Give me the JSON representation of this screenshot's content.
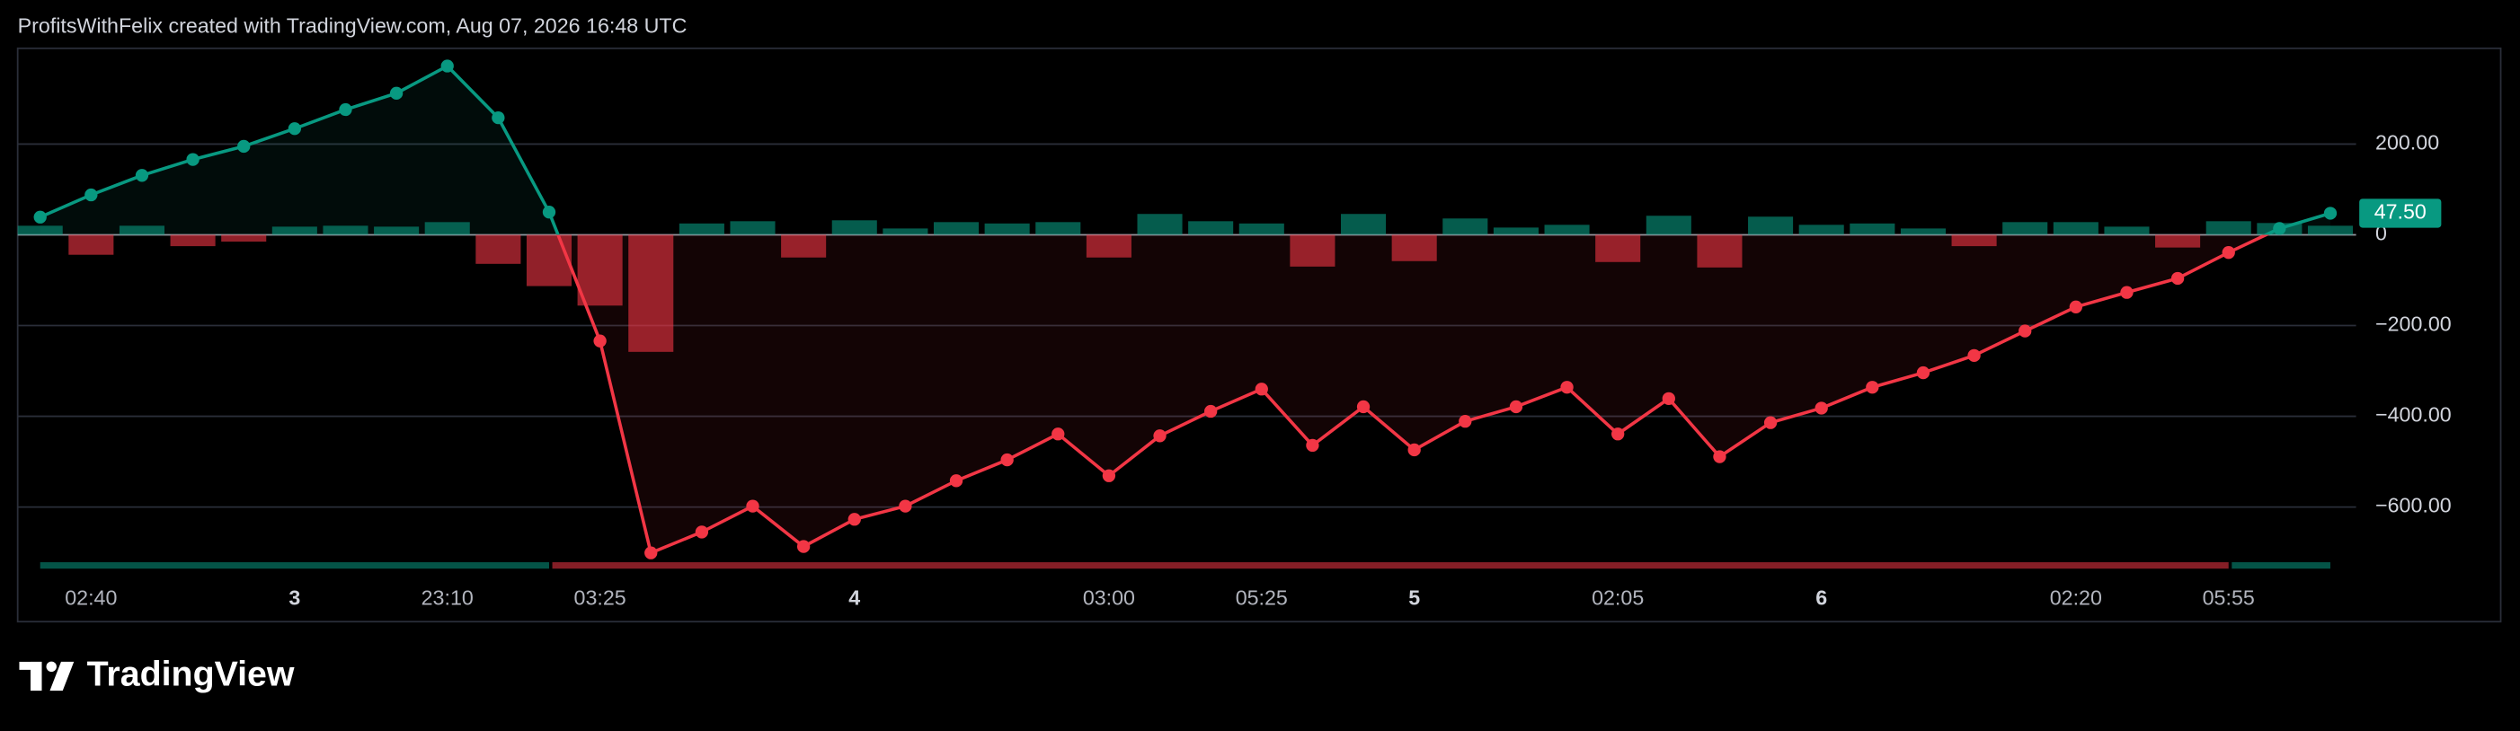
{
  "header": "ProfitsWithFelix created with TradingView.com, Aug 07, 2026 16:48 UTC",
  "logo": "TradingView",
  "chart_data": {
    "type": "line",
    "categories": [
      null,
      "02:40",
      null,
      null,
      null,
      "3",
      null,
      null,
      "23:10",
      null,
      null,
      "03:25",
      null,
      null,
      null,
      null,
      "4",
      null,
      null,
      null,
      null,
      "03:00",
      null,
      null,
      "05:25",
      null,
      null,
      "5",
      null,
      null,
      null,
      "02:05",
      null,
      null,
      null,
      "6",
      null,
      null,
      null,
      null,
      "02:20",
      null,
      null,
      "05:55",
      null,
      null
    ],
    "values": [
      39,
      88,
      131,
      166,
      195,
      234,
      276,
      312,
      372,
      258,
      50,
      -234,
      -701,
      -655,
      -598,
      -687,
      -627,
      -598,
      -542,
      -496,
      -439,
      -531,
      -443,
      -389,
      -340,
      -464,
      -379,
      -474,
      -411,
      -379,
      -336,
      -439,
      -361,
      -489,
      -414,
      -382,
      -336,
      -304,
      -266,
      -212,
      -159,
      -127,
      -96,
      -39,
      14,
      47.5
    ],
    "value_labels": [
      null,
      null,
      null,
      null,
      null,
      null,
      null,
      null,
      null,
      null,
      null,
      null,
      null,
      null,
      null,
      null,
      null,
      null,
      null,
      null,
      null,
      null,
      null,
      null,
      null,
      null,
      null,
      null,
      null,
      null,
      null,
      null,
      null,
      null,
      null,
      null,
      null,
      null,
      null,
      null,
      null,
      null,
      null,
      null,
      null,
      "47.50"
    ],
    "bars": [
      20,
      -44,
      20,
      -25,
      -15,
      18,
      20,
      18,
      28,
      -64,
      -113,
      -156,
      -258,
      25,
      30,
      -50,
      32,
      14,
      28,
      25,
      28,
      -50,
      46,
      30,
      25,
      -70,
      46,
      -58,
      36,
      16,
      22,
      -60,
      42,
      -72,
      40,
      22,
      25,
      14,
      -25,
      28,
      28,
      18,
      -28,
      30,
      26,
      20
    ],
    "positive_color": "#089981",
    "negative_color": "#f23645",
    "ylim": [
      -757,
      411
    ],
    "yticks": [
      {
        "value": 200,
        "label": "200.00"
      },
      0,
      {
        "value": -200,
        "label": "−200.00"
      },
      {
        "value": -400,
        "label": "−400.00"
      },
      {
        "value": -600,
        "label": "−600.00"
      }
    ],
    "grid": true
  }
}
